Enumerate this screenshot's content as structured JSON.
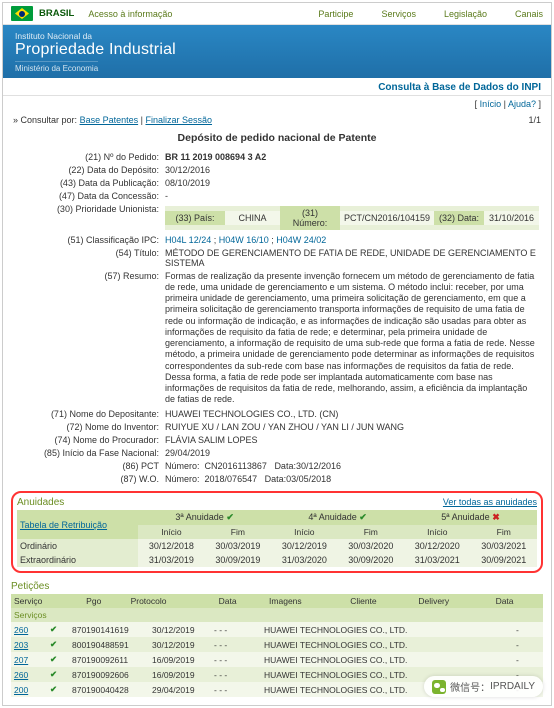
{
  "topbar": {
    "country": "BRASIL",
    "access": "Acesso à informação",
    "links": [
      "Participe",
      "Serviços",
      "Legislação",
      "Canais"
    ]
  },
  "header": {
    "line1": "Instituto Nacional da",
    "line2": "Propriedade Industrial",
    "line3": "Ministério da Economia"
  },
  "subhead": "Consulta à Base de Dados do INPI",
  "help": {
    "inicio": "Início",
    "ajuda": "Ajuda?"
  },
  "consult": {
    "prefix": "» Consultar por:",
    "base": "Base Patentes",
    "sep": "|",
    "finalizar": "Finalizar Sessão",
    "pager": "1/1"
  },
  "title": "Depósito de pedido nacional de Patente",
  "fields": {
    "f21": {
      "label": "(21) Nº do Pedido:",
      "value": "BR 11 2019 008694 3 A2"
    },
    "f22": {
      "label": "(22) Data do Depósito:",
      "value": "30/12/2016"
    },
    "f43": {
      "label": "(43) Data da Publicação:",
      "value": "08/10/2019"
    },
    "f47": {
      "label": "(47) Data da Concessão:",
      "value": "-"
    },
    "f30": {
      "label": "(30) Prioridade Unionista:"
    },
    "prio": {
      "paisLabel": "(33) País:",
      "paisVal": "CHINA",
      "numLabel": "(31) Número:",
      "numVal": "PCT/CN2016/104159",
      "dataLabel": "(32) Data:",
      "dataVal": "31/10/2016"
    },
    "f51": {
      "label": "(51) Classificação IPC:",
      "c1": "H04L 12/24",
      "c2": "H04W 16/10",
      "c3": "H04W 24/02"
    },
    "f54": {
      "label": "(54) Título:",
      "value": "MÉTODO DE GERENCIAMENTO DE FATIA DE REDE, UNIDADE DE GERENCIAMENTO E SISTEMA"
    },
    "f57": {
      "label": "(57) Resumo:",
      "value": "Formas de realização da presente invenção fornecem um método de gerenciamento de fatia de rede, uma unidade de gerenciamento e um sistema. O método inclui: receber, por uma primeira unidade de gerenciamento, uma primeira solicitação de gerenciamento, em que a primeira solicitação de gerenciamento transporta informações de requisito de uma fatia de rede ou informação de indicação, e as informações de indicação são usadas para obter as informações de requisito da fatia de rede; e determinar, pela primeira unidade de gerenciamento, a informação de requisito de uma sub-rede que forma a fatia de rede. Nesse método, a primeira unidade de gerenciamento pode determinar as informações de requisitos correspondentes da sub-rede com base nas informações de requisitos da fatia de rede. Dessa forma, a fatia de rede pode ser implantada automaticamente com base nas informações de requisitos da fatia de rede, melhorando, assim, a eficiência da implantação de fatias de rede."
    },
    "f71": {
      "label": "(71) Nome do Depositante:",
      "value": "HUAWEI TECHNOLOGIES CO., LTD. (CN)"
    },
    "f72": {
      "label": "(72) Nome do Inventor:",
      "value": "RUIYUE XU / LAN ZOU / YAN ZHOU / YAN LI / JUN WANG"
    },
    "f74": {
      "label": "(74) Nome do Procurador:",
      "value": "FLÁVIA SALIM LOPES"
    },
    "f85": {
      "label": "(85) Início da Fase Nacional:",
      "value": "29/04/2019"
    },
    "f86": {
      "label": "(86) PCT",
      "numLabel": "Número:",
      "numVal": "CN2016113867",
      "dataLabel": "Data:",
      "dataVal": "30/12/2016"
    },
    "f87": {
      "label": "(87) W.O.",
      "numLabel": "Número:",
      "numVal": "2018/076547",
      "dataLabel": "Data:",
      "dataVal": "03/05/2018"
    }
  },
  "annu": {
    "title": "Anuidades",
    "link": "Ver todas as anuidades",
    "tabela": "Tabela de Retribuição",
    "cols": [
      {
        "name": "3ª Anuidade",
        "status": "ok"
      },
      {
        "name": "4ª Anuidade",
        "status": "ok"
      },
      {
        "name": "5ª Anuidade",
        "status": "x"
      }
    ],
    "sub": [
      "Início",
      "Fim"
    ],
    "rows": [
      {
        "label": "Ordinário",
        "cells": [
          "30/12/2018",
          "30/03/2019",
          "30/12/2019",
          "30/03/2020",
          "30/12/2020",
          "30/03/2021"
        ]
      },
      {
        "label": "Extraordinário",
        "cells": [
          "31/03/2019",
          "30/09/2019",
          "31/03/2020",
          "30/09/2020",
          "31/03/2021",
          "30/09/2021"
        ]
      }
    ]
  },
  "pet": {
    "title": "Petições",
    "svctitle": "Serviços",
    "headers": [
      "Serviço",
      "Pgo",
      "Protocolo",
      "Data",
      "Imagens",
      "Cliente",
      "Delivery",
      "Data"
    ],
    "rows": [
      {
        "svc": "260",
        "pgo": "✔",
        "proto": "870190141619",
        "data": "30/12/2019",
        "img": "- - -",
        "client": "HUAWEI TECHNOLOGIES CO., LTD."
      },
      {
        "svc": "203",
        "pgo": "✔",
        "proto": "800190488591",
        "data": "30/12/2019",
        "img": "- - -",
        "client": "HUAWEI TECHNOLOGIES CO., LTD."
      },
      {
        "svc": "207",
        "pgo": "✔",
        "proto": "870190092611",
        "data": "16/09/2019",
        "img": "- - -",
        "client": "HUAWEI TECHNOLOGIES CO., LTD."
      },
      {
        "svc": "260",
        "pgo": "✔",
        "proto": "870190092606",
        "data": "16/09/2019",
        "img": "- - -",
        "client": "HUAWEI TECHNOLOGIES CO., LTD."
      },
      {
        "svc": "200",
        "pgo": "✔",
        "proto": "870190040428",
        "data": "29/04/2019",
        "img": "- - -",
        "client": "HUAWEI TECHNOLOGIES CO., LTD."
      }
    ]
  },
  "wechat": {
    "label": "微信号：",
    "name": "IPRDAILY"
  }
}
